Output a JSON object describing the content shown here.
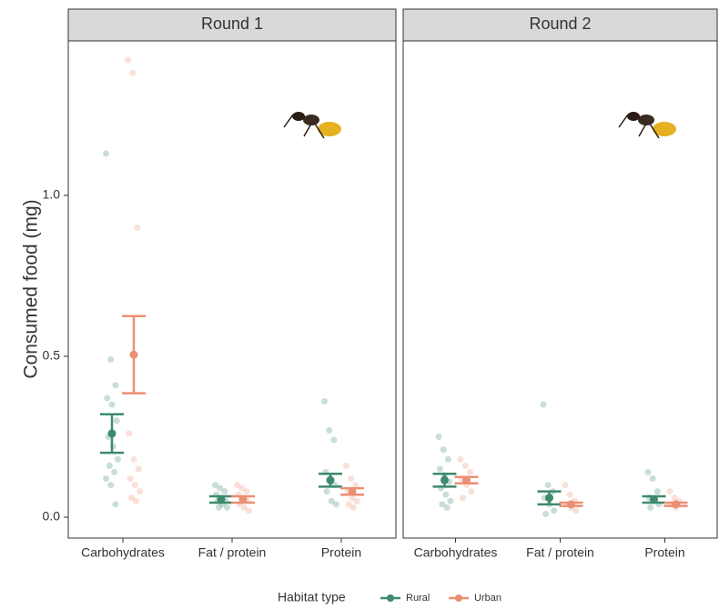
{
  "chart_data": {
    "type": "dot",
    "y_label": "Consumed food (mg)",
    "legend_title": "Habitat type",
    "legend_position": "bottom",
    "categories": [
      "Carbohydrates",
      "Fat / protein",
      "Protein"
    ],
    "ylim": [
      -0.065,
      1.48
    ],
    "yticks": [
      {
        "value": 0,
        "label": "0.0"
      },
      0.5,
      {
        "value": 1,
        "label": "1.0"
      }
    ],
    "grid": false,
    "series": [
      {
        "name": "Rural",
        "color": "#3d8a6c"
      },
      {
        "name": "Urban",
        "color": "#eb8f72"
      }
    ],
    "facets": [
      {
        "title": "Round 1",
        "series": [
          {
            "means": [
              0.26,
              0.055,
              0.115
            ],
            "errors": [
              0.06,
              0.01,
              0.02
            ],
            "points": [
              [
                1.13,
                0.49,
                0.41,
                0.37,
                0.35,
                0.3,
                0.25,
                0.22,
                0.18,
                0.16,
                0.14,
                0.12,
                0.1,
                0.04
              ],
              [
                0.1,
                0.09,
                0.08,
                0.07,
                0.06,
                0.05,
                0.05,
                0.04,
                0.03,
                0.03
              ],
              [
                0.36,
                0.27,
                0.24,
                0.14,
                0.12,
                0.1,
                0.08,
                0.05,
                0.04
              ]
            ]
          },
          {
            "means": [
              0.505,
              0.055,
              0.08
            ],
            "errors": [
              0.12,
              0.01,
              0.01
            ],
            "points": [
              [
                1.42,
                1.38,
                0.9,
                0.26,
                0.18,
                0.15,
                0.12,
                0.1,
                0.08,
                0.06,
                0.05
              ],
              [
                0.1,
                0.09,
                0.08,
                0.07,
                0.06,
                0.05,
                0.04,
                0.03,
                0.02
              ],
              [
                0.16,
                0.12,
                0.1,
                0.08,
                0.06,
                0.05,
                0.04,
                0.03
              ]
            ]
          }
        ]
      },
      {
        "title": "Round 2",
        "series": [
          {
            "means": [
              0.115,
              0.06,
              0.055
            ],
            "errors": [
              0.02,
              0.02,
              0.01
            ],
            "points": [
              [
                0.25,
                0.21,
                0.18,
                0.15,
                0.13,
                0.11,
                0.09,
                0.07,
                0.05,
                0.04,
                0.03
              ],
              [
                0.35,
                0.1,
                0.08,
                0.06,
                0.04,
                0.02,
                0.01
              ],
              [
                0.14,
                0.12,
                0.08,
                0.06,
                0.05,
                0.04,
                0.03
              ]
            ]
          },
          {
            "means": [
              0.115,
              0.04,
              0.04
            ],
            "errors": [
              0.01,
              0.005,
              0.005
            ],
            "points": [
              [
                0.18,
                0.16,
                0.14,
                0.12,
                0.1,
                0.08,
                0.06
              ],
              [
                0.1,
                0.07,
                0.05,
                0.04,
                0.03,
                0.02
              ],
              [
                0.08,
                0.06,
                0.05,
                0.04,
                0.03
              ]
            ]
          }
        ]
      }
    ]
  }
}
